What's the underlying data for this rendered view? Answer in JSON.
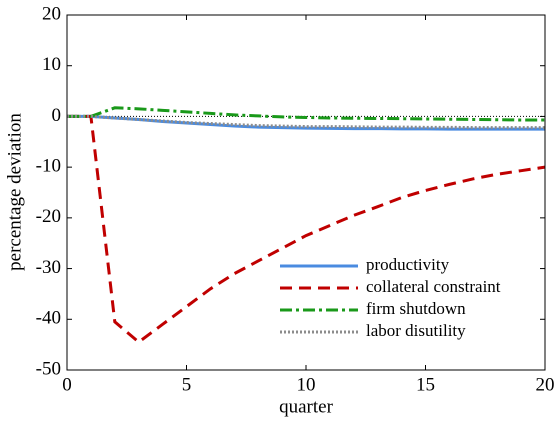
{
  "chart_data": {
    "type": "line",
    "x": [
      0,
      1,
      2,
      3,
      4,
      5,
      6,
      7,
      8,
      9,
      10,
      11,
      12,
      13,
      14,
      15,
      16,
      17,
      18,
      19,
      20
    ],
    "xlabel": "quarter",
    "ylabel": "percentage deviation",
    "xlim": [
      0,
      20
    ],
    "xticks": [
      0,
      5,
      10,
      15,
      20
    ],
    "ylim": [
      -50,
      20
    ],
    "yticks": [
      -50,
      -40,
      -30,
      -20,
      -10,
      0,
      10,
      20
    ],
    "zero_line": true,
    "legend": "lower right",
    "series": [
      {
        "name": "productivity",
        "color": "#4a8be0",
        "dash": "solid",
        "values": [
          0,
          0,
          -0.3,
          -0.6,
          -1,
          -1.3,
          -1.6,
          -1.9,
          -2.1,
          -2.2,
          -2.3,
          -2.35,
          -2.4,
          -2.4,
          -2.45,
          -2.45,
          -2.5,
          -2.5,
          -2.5,
          -2.5,
          -2.5
        ]
      },
      {
        "name": "collateral constraint",
        "color": "#c00000",
        "dash": "dashed",
        "values": [
          0,
          0,
          -40.5,
          -44.5,
          -41,
          -37.5,
          -34,
          -31,
          -28.5,
          -26,
          -23.5,
          -21.5,
          -19.5,
          -17.8,
          -16,
          -14.6,
          -13.4,
          -12.3,
          -11.4,
          -10.7,
          -10
        ]
      },
      {
        "name": "firm shutdown",
        "color": "#1a991a",
        "dash": "dashdot",
        "values": [
          0,
          0,
          1.7,
          1.5,
          1.2,
          0.9,
          0.6,
          0.3,
          0.1,
          -0.1,
          -0.2,
          -0.3,
          -0.35,
          -0.4,
          -0.45,
          -0.5,
          -0.55,
          -0.6,
          -0.65,
          -0.7,
          -0.7
        ]
      },
      {
        "name": "labor disutility",
        "color": "#8c8c8c",
        "dash": "dotted",
        "values": [
          0,
          0,
          -0.3,
          -0.6,
          -0.9,
          -1.2,
          -1.4,
          -1.6,
          -1.8,
          -1.9,
          -2,
          -2,
          -2.05,
          -2.1,
          -2.1,
          -2.15,
          -2.15,
          -2.2,
          -2.2,
          -2.2,
          -2.2
        ]
      }
    ]
  }
}
